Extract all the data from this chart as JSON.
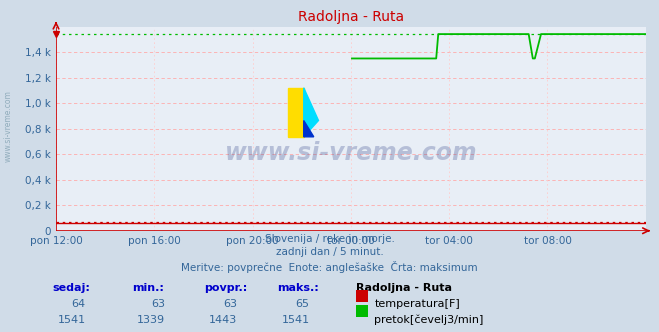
{
  "title": "Radoljna - Ruta",
  "title_color": "#cc0000",
  "bg_color": "#d0dce8",
  "plot_bg_color": "#e8eef6",
  "grid_color_h": "#ffaaaa",
  "grid_color_v": "#ffcccc",
  "x_labels": [
    "pon 12:00",
    "pon 16:00",
    "pon 20:00",
    "tor 00:00",
    "tor 04:00",
    "tor 08:00"
  ],
  "x_ticks_norm": [
    0.0,
    0.1667,
    0.3333,
    0.5,
    0.6667,
    0.8333
  ],
  "y_ticks": [
    0,
    200,
    400,
    600,
    800,
    1000,
    1200,
    1400
  ],
  "y_tick_labels": [
    "0",
    "0,2 k",
    "0,4 k",
    "0,6 k",
    "0,8 k",
    "1,0 k",
    "1,2 k",
    "1,4 k"
  ],
  "ylim": [
    0,
    1600
  ],
  "xlim": [
    0,
    1
  ],
  "text_lines": [
    "Slovenija / reke in morje.",
    "zadnji dan / 5 minut.",
    "Meritve: povprečne  Enote: anglešaške  Črta: maksimum"
  ],
  "table_headers": [
    "sedaj:",
    "min.:",
    "povpr.:",
    "maks.:"
  ],
  "table_header_color": "#0000cc",
  "temp_row": [
    "64",
    "63",
    "63",
    "65"
  ],
  "flow_row": [
    "1541",
    "1339",
    "1443",
    "1541"
  ],
  "legend_label_temp": "temperatura[F]",
  "legend_label_flow": "pretok[čevelj3/min]",
  "legend_title": "Radoljna - Ruta",
  "temp_color": "#cc0000",
  "flow_color": "#00bb00",
  "axis_color": "#cc0000",
  "text_color": "#336699",
  "watermark_text": "www.si-vreme.com",
  "watermark_color": "#334488",
  "watermark_alpha": 0.28,
  "flow_max": 1541,
  "flow_min": 1339,
  "flow_avg": 1443,
  "temp_value": 64,
  "temp_max": 65,
  "temp_min": 63,
  "sidebar_text": "www.si-vreme.com",
  "sidebar_color": "#7799aa"
}
